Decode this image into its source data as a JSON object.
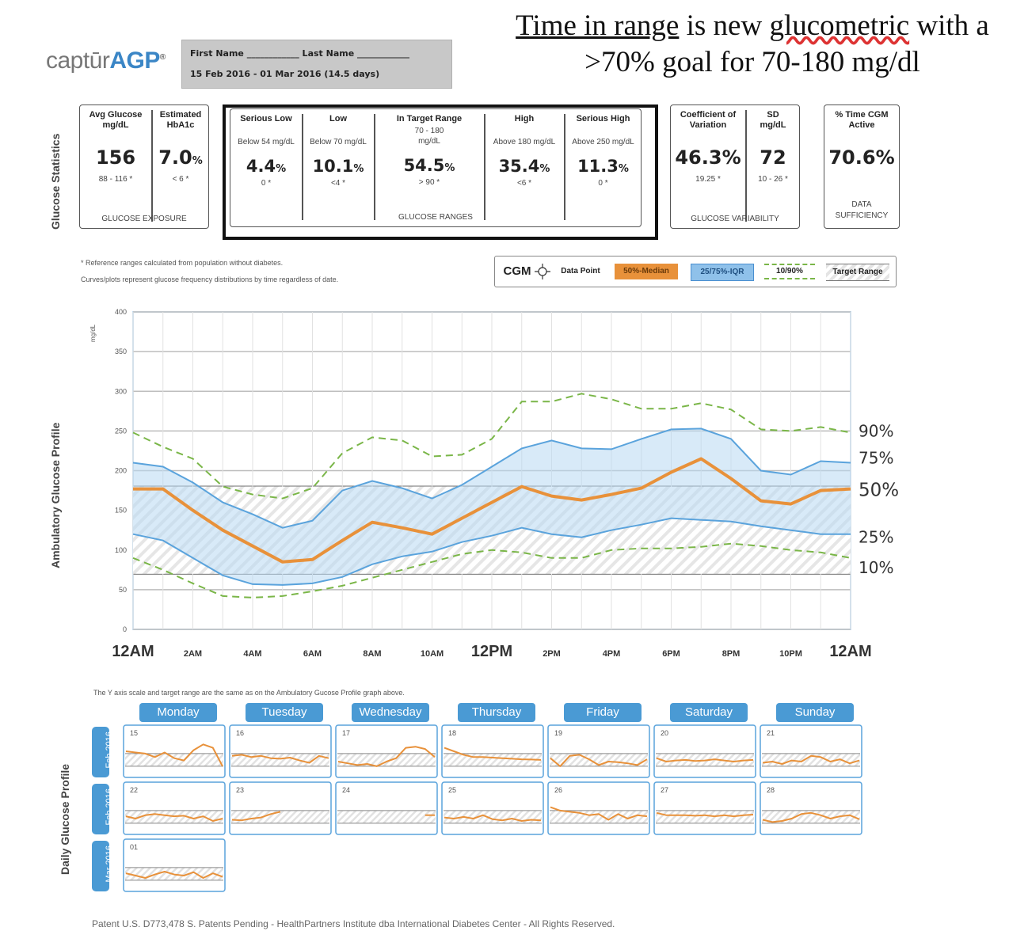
{
  "header": {
    "logo_light": "captūr",
    "logo_bold": "AGP",
    "logo_mark": "®",
    "name_line": "First Name ____________ Last Name ____________",
    "date_range": "15 Feb 2016 - 01 Mar 2016  (14.5 days)",
    "headline_u1": "Time in range",
    "headline_mid": " is new ",
    "headline_w": "glucometric",
    "headline_end": " with a",
    "headline_line2": ">70% goal for 70-180 mg/dl"
  },
  "stats": {
    "side_label": "Glucose Statistics",
    "exposure": {
      "avg_title": "Avg Glucose mg/dL",
      "avg_value": "156",
      "avg_ref": "88 - 116 *",
      "a1c_title": "Estimated HbA1c",
      "a1c_value": "7.0",
      "a1c_unit": "%",
      "a1c_ref": "< 6 *",
      "footer": "GLUCOSE EXPOSURE"
    },
    "ranges": {
      "serious_low": {
        "title": "Serious Low",
        "desc": "Below 54 mg/dL",
        "value": "4.4",
        "unit": "%",
        "ref": "0 *"
      },
      "low": {
        "title": "Low",
        "desc": "Below 70 mg/dL",
        "value": "10.1",
        "unit": "%",
        "ref": "<4 *"
      },
      "target": {
        "title": "In Target Range",
        "desc": "70 - 180 mg/dL",
        "value": "54.5",
        "unit": "%",
        "ref": "> 90 *"
      },
      "high": {
        "title": "High",
        "desc": "Above 180 mg/dL",
        "value": "35.4",
        "unit": "%",
        "ref": "<6 *"
      },
      "serious_high": {
        "title": "Serious High",
        "desc": "Above 250 mg/dL",
        "value": "11.3",
        "unit": "%",
        "ref": "0 *"
      },
      "footer": "GLUCOSE RANGES"
    },
    "variability": {
      "cv_title": "Coefficient of Variation",
      "cv_value": "46.3%",
      "cv_ref": "19.25 *",
      "sd_title": "SD mg/dL",
      "sd_value": "72",
      "sd_ref": "10 - 26 *",
      "footer": "GLUCOSE VARIABILITY"
    },
    "sufficiency": {
      "title": "% Time CGM Active",
      "value": "70.6%",
      "footer1": "DATA",
      "footer2": "SUFFICIENCY"
    }
  },
  "notes": {
    "line1": "* Reference ranges calculated from population without diabetes.",
    "line2": "Curves/plots represent glucose frequency distributions by time regardless of date."
  },
  "legend": {
    "cgm": "CGM",
    "data_point": "Data Point",
    "median": "50%-Median",
    "iqr": "25/75%-IQR",
    "decile": "10/90%",
    "target": "Target Range",
    "colors": {
      "median": "#e8913a",
      "iqr": "#6fb0e0",
      "decile": "#7ab648"
    }
  },
  "agp_side_label": "Ambulatory Glucose Profile",
  "chart_data": {
    "type": "line",
    "ylabel": "mg/dL",
    "ylim": [
      0,
      400
    ],
    "yticks": [
      0,
      50,
      100,
      150,
      200,
      250,
      300,
      350,
      400
    ],
    "target_range": [
      70,
      180
    ],
    "xlabels": [
      "12AM",
      "2AM",
      "4AM",
      "6AM",
      "8AM",
      "10AM",
      "12PM",
      "2PM",
      "4PM",
      "6PM",
      "8PM",
      "10PM",
      "12AM"
    ],
    "x_hours": [
      0,
      1,
      2,
      3,
      4,
      5,
      6,
      7,
      8,
      9,
      10,
      11,
      12,
      13,
      14,
      15,
      16,
      17,
      18,
      19,
      20,
      21,
      22,
      23,
      24
    ],
    "series": [
      {
        "name": "90%",
        "values": [
          248,
          230,
          215,
          180,
          170,
          165,
          178,
          222,
          242,
          238,
          218,
          220,
          240,
          287,
          287,
          297,
          290,
          278,
          278,
          285,
          277,
          252,
          250,
          255,
          248
        ]
      },
      {
        "name": "75%",
        "values": [
          210,
          205,
          185,
          160,
          145,
          128,
          137,
          175,
          187,
          178,
          165,
          182,
          205,
          228,
          238,
          228,
          227,
          240,
          252,
          253,
          240,
          200,
          195,
          212,
          210
        ]
      },
      {
        "name": "50%",
        "values": [
          177,
          177,
          150,
          125,
          105,
          85,
          88,
          112,
          135,
          128,
          120,
          140,
          160,
          180,
          168,
          163,
          170,
          178,
          198,
          215,
          190,
          162,
          158,
          175,
          177
        ]
      },
      {
        "name": "25%",
        "values": [
          120,
          112,
          90,
          68,
          57,
          56,
          58,
          66,
          82,
          92,
          98,
          110,
          118,
          128,
          120,
          116,
          125,
          132,
          140,
          138,
          136,
          130,
          125,
          120,
          120
        ]
      },
      {
        "name": "10%",
        "values": [
          90,
          75,
          58,
          42,
          40,
          42,
          48,
          55,
          65,
          75,
          85,
          95,
          100,
          97,
          90,
          90,
          100,
          102,
          102,
          104,
          108,
          105,
          100,
          97,
          90
        ]
      }
    ],
    "right_labels": [
      "90%",
      "75%",
      "50%",
      "25%",
      "10%"
    ]
  },
  "daily": {
    "note": "The Y axis scale and target range are the same as on the Ambulatory Gucose Profile graph above.",
    "side_label": "Daily Glucose Profile",
    "days": [
      "Monday",
      "Tuesday",
      "Wednesday",
      "Thursday",
      "Friday",
      "Saturday",
      "Sunday"
    ],
    "months": [
      "Feb 2016",
      "Feb 2016",
      "Mar 2016"
    ],
    "cells": [
      {
        "date": "15",
        "values": [
          200,
          190,
          180,
          150,
          190,
          140,
          120,
          210,
          260,
          230,
          70
        ]
      },
      {
        "date": "16",
        "values": [
          160,
          170,
          150,
          160,
          140,
          135,
          145,
          120,
          100,
          160,
          140
        ]
      },
      {
        "date": "17",
        "values": [
          110,
          95,
          80,
          90,
          70,
          110,
          140,
          230,
          240,
          220,
          150
        ]
      },
      {
        "date": "18",
        "values": [
          230,
          200,
          170,
          150,
          150,
          145,
          140,
          135,
          130,
          128,
          125
        ]
      },
      {
        "date": "19",
        "values": [
          140,
          70,
          160,
          170,
          130,
          80,
          110,
          105,
          95,
          80,
          130
        ]
      },
      {
        "date": "20",
        "values": [
          140,
          110,
          120,
          125,
          115,
          120,
          130,
          120,
          110,
          120,
          125
        ]
      },
      {
        "date": "21",
        "values": [
          100,
          110,
          90,
          120,
          110,
          160,
          150,
          110,
          130,
          95,
          120
        ]
      },
      {
        "date": "22",
        "values": [
          130,
          110,
          140,
          150,
          140,
          130,
          135,
          110,
          130,
          90,
          110
        ]
      },
      {
        "date": "23",
        "values": [
          100,
          95,
          110,
          120,
          150,
          170,
          null,
          null,
          null,
          null,
          null
        ]
      },
      {
        "date": "24",
        "values": [
          null,
          null,
          null,
          null,
          null,
          null,
          null,
          null,
          null,
          140,
          140
        ]
      },
      {
        "date": "25",
        "values": [
          120,
          110,
          125,
          110,
          140,
          105,
          95,
          110,
          90,
          100,
          95
        ]
      },
      {
        "date": "26",
        "values": [
          210,
          180,
          170,
          160,
          140,
          150,
          100,
          150,
          110,
          140,
          130
        ]
      },
      {
        "date": "27",
        "values": [
          160,
          140,
          140,
          140,
          135,
          140,
          130,
          140,
          130,
          140,
          145
        ]
      },
      {
        "date": "28",
        "values": [
          100,
          80,
          90,
          110,
          150,
          160,
          140,
          110,
          130,
          140,
          105
        ]
      },
      {
        "date": "01",
        "values": [
          130,
          110,
          90,
          120,
          145,
          120,
          110,
          140,
          90,
          130,
          100
        ]
      }
    ]
  },
  "footer": "Patent U.S. D773,478 S. Patents Pending -  HealthPartners Institute dba International Diabetes Center - All Rights Reserved."
}
